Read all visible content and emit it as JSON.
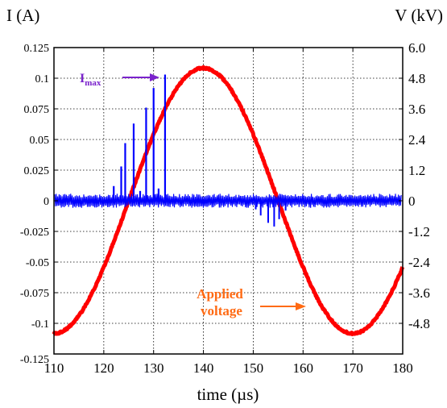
{
  "chart_data": {
    "type": "line",
    "title": "",
    "xlabel": "time (µs)",
    "ylabel_left": "I (A)",
    "ylabel_right": "V (kV)",
    "xlim": [
      110,
      180
    ],
    "ylim_left": [
      -0.125,
      0.125
    ],
    "ylim_right": [
      -6.0,
      6.0
    ],
    "x_ticks": [
      "110",
      "120",
      "130",
      "140",
      "150",
      "160",
      "170",
      "180"
    ],
    "y_left_ticks": [
      "0.125",
      "0.1",
      "0.075",
      "0.05",
      "0.025",
      "0",
      "-0.025",
      "-0.05",
      "-0.075",
      "-0.1",
      "-0.125"
    ],
    "y_right_ticks": [
      "6.0",
      "4.8",
      "3.6",
      "2.4",
      "1.2",
      "0",
      "-1.2",
      "-2.4",
      "-3.6",
      "-4.8"
    ],
    "grid": true,
    "voltage": {
      "axis": "right",
      "color": "#ff0000",
      "shape": "sine",
      "amplitude_kv": 5.2,
      "period_us": 60,
      "peak_time_us": 140,
      "trough_time_us": 170,
      "x": [
        110,
        115,
        120,
        125,
        130,
        135,
        140,
        145,
        150,
        155,
        160,
        165,
        170,
        175,
        180
      ],
      "y": [
        -5.2,
        -4.5,
        -2.6,
        0.0,
        2.6,
        4.5,
        5.2,
        4.5,
        2.6,
        0.0,
        -2.6,
        -4.5,
        -5.2,
        -4.5,
        -2.6
      ]
    },
    "current": {
      "axis": "left",
      "color": "#0000ff",
      "noise_band": [
        -0.005,
        0.005
      ],
      "positive_spikes": [
        {
          "x": 122.0,
          "y": 0.012
        },
        {
          "x": 123.5,
          "y": 0.028
        },
        {
          "x": 124.3,
          "y": 0.047
        },
        {
          "x": 126.0,
          "y": 0.063
        },
        {
          "x": 127.3,
          "y": 0.008
        },
        {
          "x": 128.5,
          "y": 0.076
        },
        {
          "x": 130.0,
          "y": 0.092
        },
        {
          "x": 131.0,
          "y": 0.01
        },
        {
          "x": 132.3,
          "y": 0.103
        }
      ],
      "negative_spikes": [
        {
          "x": 150.5,
          "y": -0.007
        },
        {
          "x": 151.5,
          "y": -0.012
        },
        {
          "x": 153.0,
          "y": -0.018
        },
        {
          "x": 154.2,
          "y": -0.021
        },
        {
          "x": 155.2,
          "y": -0.015
        },
        {
          "x": 156.5,
          "y": -0.008
        }
      ]
    },
    "annotations": {
      "imax": {
        "text": "I",
        "sub": "max",
        "color": "#7a22cc"
      },
      "applied_voltage": {
        "line1": "Applied",
        "line2": "voltage",
        "color": "#ff6a13"
      }
    }
  }
}
